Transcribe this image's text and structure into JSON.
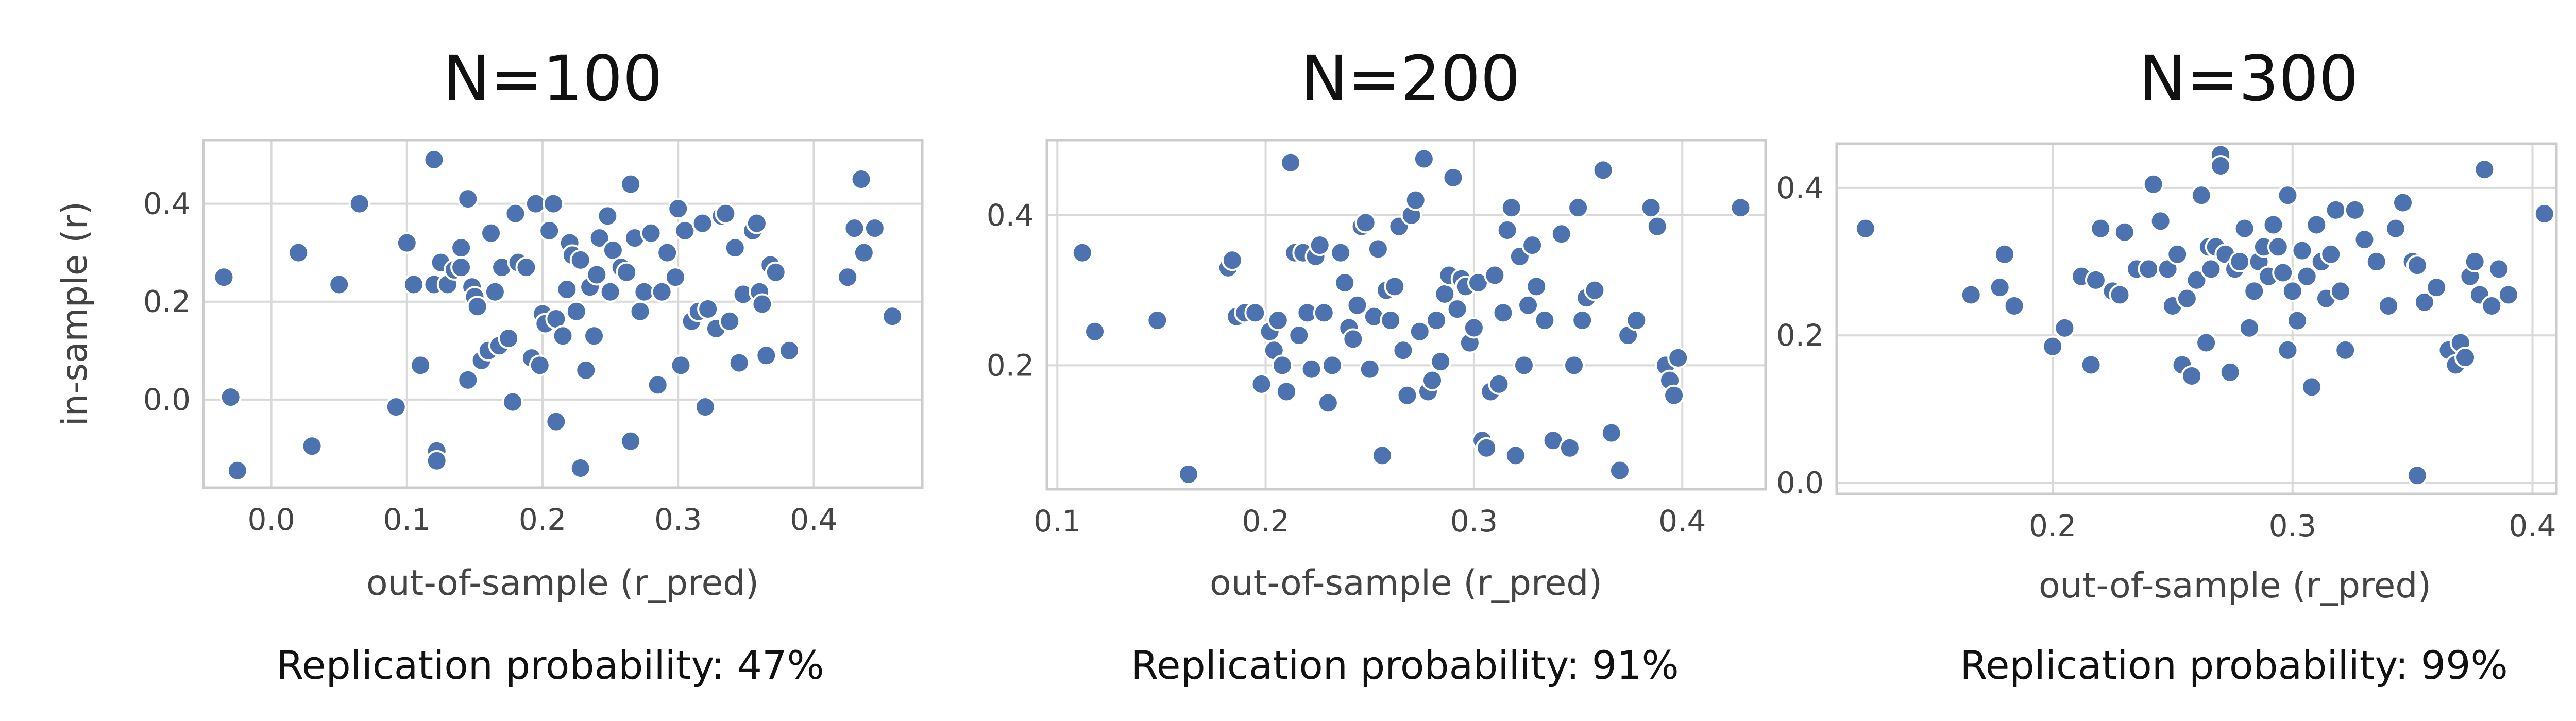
{
  "chart_data": [
    {
      "type": "scatter",
      "title": "N=100",
      "xlabel": "out-of-sample (r_pred)",
      "ylabel": "in-sample (r)",
      "xlim": [
        -0.05,
        0.48
      ],
      "ylim": [
        -0.18,
        0.53
      ],
      "xticks": [
        0.0,
        0.1,
        0.2,
        0.3,
        0.4
      ],
      "xtick_labels": [
        "0.0",
        "0.1",
        "0.2",
        "0.3",
        "0.4"
      ],
      "yticks": [
        0.0,
        0.2,
        0.4
      ],
      "ytick_labels": [
        "0.0",
        "0.2",
        "0.4"
      ],
      "grid": true,
      "caption": "Replication probability: 47%",
      "points": [
        [
          -0.035,
          0.25
        ],
        [
          -0.03,
          0.005
        ],
        [
          -0.025,
          -0.145
        ],
        [
          0.02,
          0.3
        ],
        [
          0.03,
          -0.095
        ],
        [
          0.05,
          0.235
        ],
        [
          0.065,
          0.4
        ],
        [
          0.092,
          -0.015
        ],
        [
          0.1,
          0.32
        ],
        [
          0.105,
          0.235
        ],
        [
          0.11,
          0.07
        ],
        [
          0.12,
          0.49
        ],
        [
          0.12,
          0.235
        ],
        [
          0.122,
          -0.105
        ],
        [
          0.122,
          -0.125
        ],
        [
          0.125,
          0.28
        ],
        [
          0.13,
          0.235
        ],
        [
          0.135,
          0.265
        ],
        [
          0.14,
          0.31
        ],
        [
          0.14,
          0.27
        ],
        [
          0.145,
          0.41
        ],
        [
          0.145,
          0.04
        ],
        [
          0.148,
          0.23
        ],
        [
          0.15,
          0.21
        ],
        [
          0.152,
          0.19
        ],
        [
          0.155,
          0.08
        ],
        [
          0.16,
          0.1
        ],
        [
          0.162,
          0.34
        ],
        [
          0.165,
          0.22
        ],
        [
          0.168,
          0.11
        ],
        [
          0.17,
          0.27
        ],
        [
          0.175,
          0.125
        ],
        [
          0.178,
          -0.005
        ],
        [
          0.18,
          0.38
        ],
        [
          0.182,
          0.28
        ],
        [
          0.188,
          0.27
        ],
        [
          0.192,
          0.085
        ],
        [
          0.195,
          0.4
        ],
        [
          0.198,
          0.07
        ],
        [
          0.2,
          0.175
        ],
        [
          0.202,
          0.155
        ],
        [
          0.205,
          0.345
        ],
        [
          0.208,
          0.4
        ],
        [
          0.21,
          0.165
        ],
        [
          0.21,
          -0.045
        ],
        [
          0.215,
          0.13
        ],
        [
          0.218,
          0.225
        ],
        [
          0.22,
          0.32
        ],
        [
          0.222,
          0.295
        ],
        [
          0.225,
          0.18
        ],
        [
          0.228,
          0.285
        ],
        [
          0.228,
          -0.14
        ],
        [
          0.232,
          0.06
        ],
        [
          0.235,
          0.23
        ],
        [
          0.238,
          0.13
        ],
        [
          0.24,
          0.255
        ],
        [
          0.242,
          0.33
        ],
        [
          0.248,
          0.375
        ],
        [
          0.25,
          0.22
        ],
        [
          0.252,
          0.305
        ],
        [
          0.258,
          0.27
        ],
        [
          0.262,
          0.26
        ],
        [
          0.265,
          0.44
        ],
        [
          0.265,
          -0.085
        ],
        [
          0.268,
          0.33
        ],
        [
          0.272,
          0.18
        ],
        [
          0.275,
          0.22
        ],
        [
          0.28,
          0.34
        ],
        [
          0.285,
          0.03
        ],
        [
          0.288,
          0.22
        ],
        [
          0.292,
          0.3
        ],
        [
          0.298,
          0.25
        ],
        [
          0.3,
          0.39
        ],
        [
          0.302,
          0.07
        ],
        [
          0.305,
          0.345
        ],
        [
          0.31,
          0.16
        ],
        [
          0.315,
          0.18
        ],
        [
          0.318,
          0.36
        ],
        [
          0.32,
          -0.015
        ],
        [
          0.322,
          0.185
        ],
        [
          0.328,
          0.145
        ],
        [
          0.332,
          0.375
        ],
        [
          0.335,
          0.38
        ],
        [
          0.338,
          0.16
        ],
        [
          0.342,
          0.31
        ],
        [
          0.345,
          0.075
        ],
        [
          0.348,
          0.215
        ],
        [
          0.355,
          0.345
        ],
        [
          0.358,
          0.36
        ],
        [
          0.36,
          0.22
        ],
        [
          0.362,
          0.195
        ],
        [
          0.365,
          0.09
        ],
        [
          0.368,
          0.275
        ],
        [
          0.372,
          0.26
        ],
        [
          0.382,
          0.1
        ],
        [
          0.425,
          0.25
        ],
        [
          0.43,
          0.35
        ],
        [
          0.435,
          0.45
        ],
        [
          0.437,
          0.3
        ],
        [
          0.445,
          0.35
        ],
        [
          0.458,
          0.17
        ]
      ]
    },
    {
      "type": "scatter",
      "title": "N=200",
      "xlabel": "out-of-sample (r_pred)",
      "ylabel": "",
      "xlim": [
        0.095,
        0.44
      ],
      "ylim": [
        0.035,
        0.5
      ],
      "xticks": [
        0.1,
        0.2,
        0.3,
        0.4
      ],
      "xtick_labels": [
        "0.1",
        "0.2",
        "0.3",
        "0.4"
      ],
      "yticks": [
        0.2,
        0.4
      ],
      "ytick_labels": [
        "0.2",
        "0.4"
      ],
      "grid": true,
      "caption": "Replication probability: 91%",
      "points": [
        [
          0.112,
          0.35
        ],
        [
          0.118,
          0.245
        ],
        [
          0.148,
          0.26
        ],
        [
          0.163,
          0.055
        ],
        [
          0.182,
          0.33
        ],
        [
          0.184,
          0.34
        ],
        [
          0.186,
          0.265
        ],
        [
          0.19,
          0.27
        ],
        [
          0.195,
          0.27
        ],
        [
          0.198,
          0.175
        ],
        [
          0.202,
          0.245
        ],
        [
          0.204,
          0.22
        ],
        [
          0.206,
          0.26
        ],
        [
          0.208,
          0.2
        ],
        [
          0.21,
          0.165
        ],
        [
          0.212,
          0.47
        ],
        [
          0.214,
          0.35
        ],
        [
          0.216,
          0.24
        ],
        [
          0.218,
          0.35
        ],
        [
          0.22,
          0.27
        ],
        [
          0.222,
          0.195
        ],
        [
          0.224,
          0.345
        ],
        [
          0.226,
          0.36
        ],
        [
          0.228,
          0.27
        ],
        [
          0.23,
          0.15
        ],
        [
          0.232,
          0.2
        ],
        [
          0.236,
          0.35
        ],
        [
          0.238,
          0.31
        ],
        [
          0.24,
          0.25
        ],
        [
          0.242,
          0.235
        ],
        [
          0.244,
          0.28
        ],
        [
          0.246,
          0.385
        ],
        [
          0.248,
          0.39
        ],
        [
          0.25,
          0.195
        ],
        [
          0.252,
          0.265
        ],
        [
          0.254,
          0.355
        ],
        [
          0.256,
          0.08
        ],
        [
          0.258,
          0.3
        ],
        [
          0.26,
          0.26
        ],
        [
          0.262,
          0.305
        ],
        [
          0.264,
          0.385
        ],
        [
          0.266,
          0.22
        ],
        [
          0.268,
          0.16
        ],
        [
          0.27,
          0.4
        ],
        [
          0.272,
          0.42
        ],
        [
          0.274,
          0.245
        ],
        [
          0.276,
          0.475
        ],
        [
          0.278,
          0.165
        ],
        [
          0.28,
          0.18
        ],
        [
          0.282,
          0.26
        ],
        [
          0.284,
          0.205
        ],
        [
          0.286,
          0.295
        ],
        [
          0.288,
          0.32
        ],
        [
          0.29,
          0.45
        ],
        [
          0.292,
          0.275
        ],
        [
          0.294,
          0.315
        ],
        [
          0.296,
          0.305
        ],
        [
          0.298,
          0.23
        ],
        [
          0.3,
          0.25
        ],
        [
          0.302,
          0.31
        ],
        [
          0.304,
          0.1
        ],
        [
          0.306,
          0.09
        ],
        [
          0.308,
          0.165
        ],
        [
          0.31,
          0.32
        ],
        [
          0.312,
          0.175
        ],
        [
          0.314,
          0.27
        ],
        [
          0.316,
          0.38
        ],
        [
          0.318,
          0.41
        ],
        [
          0.32,
          0.08
        ],
        [
          0.322,
          0.345
        ],
        [
          0.324,
          0.2
        ],
        [
          0.326,
          0.28
        ],
        [
          0.328,
          0.36
        ],
        [
          0.33,
          0.305
        ],
        [
          0.334,
          0.26
        ],
        [
          0.338,
          0.1
        ],
        [
          0.342,
          0.375
        ],
        [
          0.346,
          0.09
        ],
        [
          0.348,
          0.2
        ],
        [
          0.35,
          0.41
        ],
        [
          0.352,
          0.26
        ],
        [
          0.354,
          0.29
        ],
        [
          0.358,
          0.3
        ],
        [
          0.362,
          0.46
        ],
        [
          0.366,
          0.11
        ],
        [
          0.37,
          0.06
        ],
        [
          0.374,
          0.24
        ],
        [
          0.378,
          0.26
        ],
        [
          0.385,
          0.41
        ],
        [
          0.388,
          0.385
        ],
        [
          0.392,
          0.2
        ],
        [
          0.394,
          0.18
        ],
        [
          0.396,
          0.16
        ],
        [
          0.398,
          0.21
        ],
        [
          0.428,
          0.41
        ]
      ]
    },
    {
      "type": "scatter",
      "title": "N=300",
      "xlabel": "out-of-sample (r_pred)",
      "ylabel": "",
      "xlim": [
        0.11,
        0.41
      ],
      "ylim": [
        -0.015,
        0.46
      ],
      "xticks": [
        0.2,
        0.3,
        0.4
      ],
      "xtick_labels": [
        "0.2",
        "0.3",
        "0.4"
      ],
      "yticks": [
        0.0,
        0.2,
        0.4
      ],
      "ytick_labels": [
        "0.0",
        "0.2",
        "0.4"
      ],
      "grid": true,
      "caption": "Replication probability: 99%",
      "points": [
        [
          0.122,
          0.345
        ],
        [
          0.166,
          0.255
        ],
        [
          0.178,
          0.265
        ],
        [
          0.18,
          0.31
        ],
        [
          0.184,
          0.24
        ],
        [
          0.2,
          0.185
        ],
        [
          0.205,
          0.21
        ],
        [
          0.212,
          0.28
        ],
        [
          0.216,
          0.16
        ],
        [
          0.218,
          0.275
        ],
        [
          0.22,
          0.345
        ],
        [
          0.225,
          0.26
        ],
        [
          0.228,
          0.255
        ],
        [
          0.23,
          0.34
        ],
        [
          0.235,
          0.29
        ],
        [
          0.24,
          0.29
        ],
        [
          0.242,
          0.405
        ],
        [
          0.245,
          0.355
        ],
        [
          0.248,
          0.29
        ],
        [
          0.25,
          0.24
        ],
        [
          0.252,
          0.31
        ],
        [
          0.254,
          0.16
        ],
        [
          0.256,
          0.25
        ],
        [
          0.258,
          0.145
        ],
        [
          0.26,
          0.275
        ],
        [
          0.262,
          0.39
        ],
        [
          0.264,
          0.19
        ],
        [
          0.265,
          0.32
        ],
        [
          0.266,
          0.29
        ],
        [
          0.268,
          0.32
        ],
        [
          0.27,
          0.445
        ],
        [
          0.27,
          0.43
        ],
        [
          0.272,
          0.31
        ],
        [
          0.274,
          0.15
        ],
        [
          0.276,
          0.29
        ],
        [
          0.278,
          0.3
        ],
        [
          0.28,
          0.345
        ],
        [
          0.282,
          0.21
        ],
        [
          0.284,
          0.26
        ],
        [
          0.286,
          0.3
        ],
        [
          0.288,
          0.32
        ],
        [
          0.29,
          0.28
        ],
        [
          0.292,
          0.35
        ],
        [
          0.294,
          0.32
        ],
        [
          0.296,
          0.285
        ],
        [
          0.298,
          0.18
        ],
        [
          0.298,
          0.39
        ],
        [
          0.3,
          0.26
        ],
        [
          0.302,
          0.22
        ],
        [
          0.304,
          0.315
        ],
        [
          0.306,
          0.28
        ],
        [
          0.308,
          0.13
        ],
        [
          0.31,
          0.35
        ],
        [
          0.312,
          0.3
        ],
        [
          0.314,
          0.25
        ],
        [
          0.316,
          0.31
        ],
        [
          0.318,
          0.37
        ],
        [
          0.32,
          0.26
        ],
        [
          0.322,
          0.18
        ],
        [
          0.326,
          0.37
        ],
        [
          0.33,
          0.33
        ],
        [
          0.335,
          0.3
        ],
        [
          0.34,
          0.24
        ],
        [
          0.343,
          0.345
        ],
        [
          0.346,
          0.38
        ],
        [
          0.35,
          0.3
        ],
        [
          0.352,
          0.295
        ],
        [
          0.352,
          0.01
        ],
        [
          0.355,
          0.245
        ],
        [
          0.36,
          0.265
        ],
        [
          0.365,
          0.18
        ],
        [
          0.368,
          0.16
        ],
        [
          0.37,
          0.19
        ],
        [
          0.372,
          0.17
        ],
        [
          0.374,
          0.28
        ],
        [
          0.376,
          0.3
        ],
        [
          0.378,
          0.255
        ],
        [
          0.38,
          0.425
        ],
        [
          0.383,
          0.24
        ],
        [
          0.386,
          0.29
        ],
        [
          0.39,
          0.255
        ],
        [
          0.405,
          0.365
        ]
      ]
    }
  ]
}
